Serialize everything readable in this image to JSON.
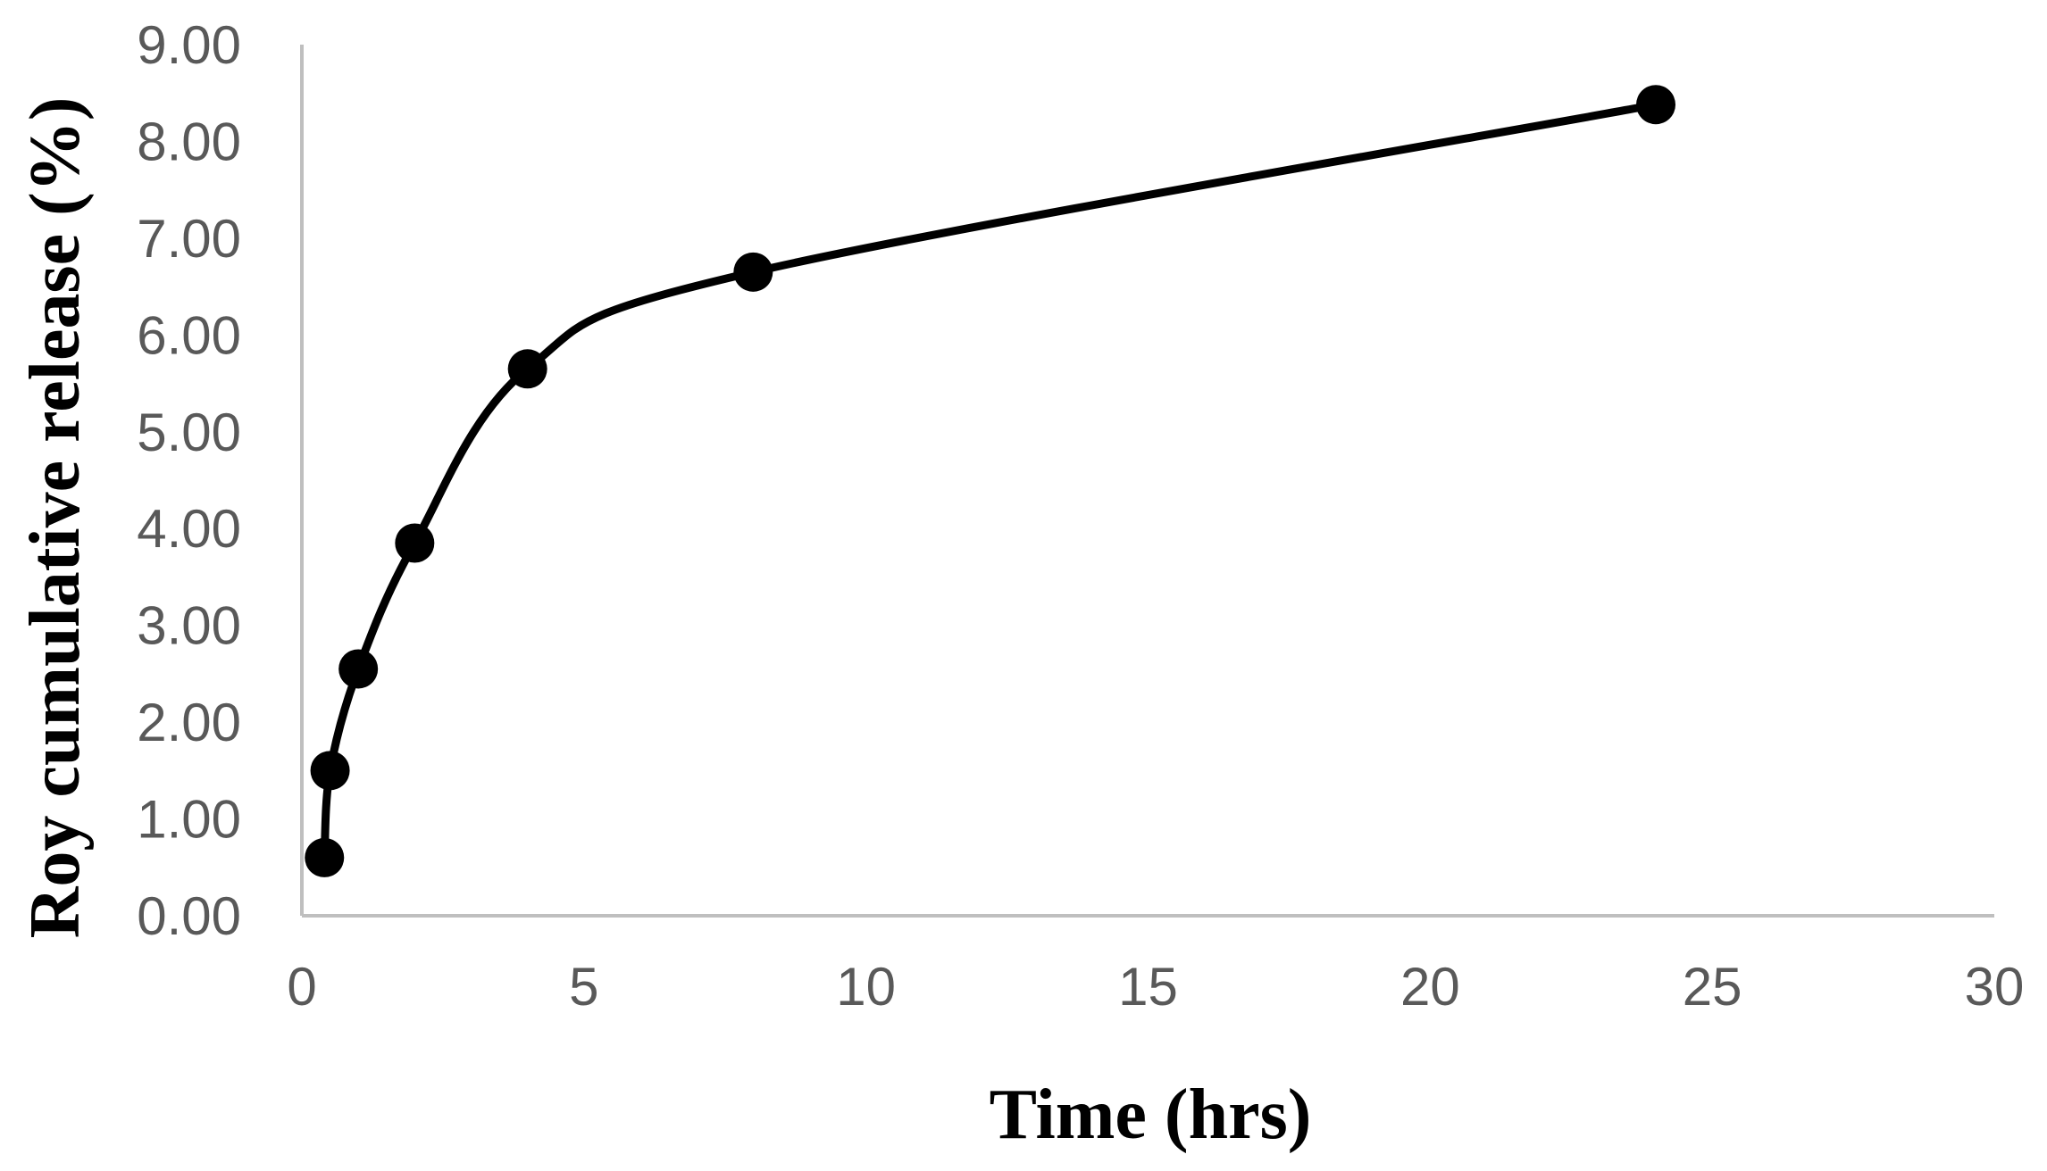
{
  "chart_data": {
    "type": "line",
    "smooth": true,
    "title": "",
    "xlabel": "Time (hrs)",
    "ylabel": "Roy cumulative release (%)",
    "xlim": [
      0,
      30
    ],
    "ylim": [
      0,
      9
    ],
    "xticks": [
      0,
      5,
      10,
      15,
      20,
      25,
      30
    ],
    "yticks": [
      0,
      1,
      2,
      3,
      4,
      5,
      6,
      7,
      8,
      9
    ],
    "yticks_format_decimals": 2,
    "grid": false,
    "legend": "none",
    "series": [
      {
        "x": [
          0.4,
          0.5,
          1,
          2,
          4,
          8,
          24
        ],
        "y": [
          0.6,
          1.5,
          2.55,
          3.85,
          5.65,
          6.65,
          8.38
        ],
        "color": "#000000",
        "marker": "circle"
      }
    ]
  }
}
